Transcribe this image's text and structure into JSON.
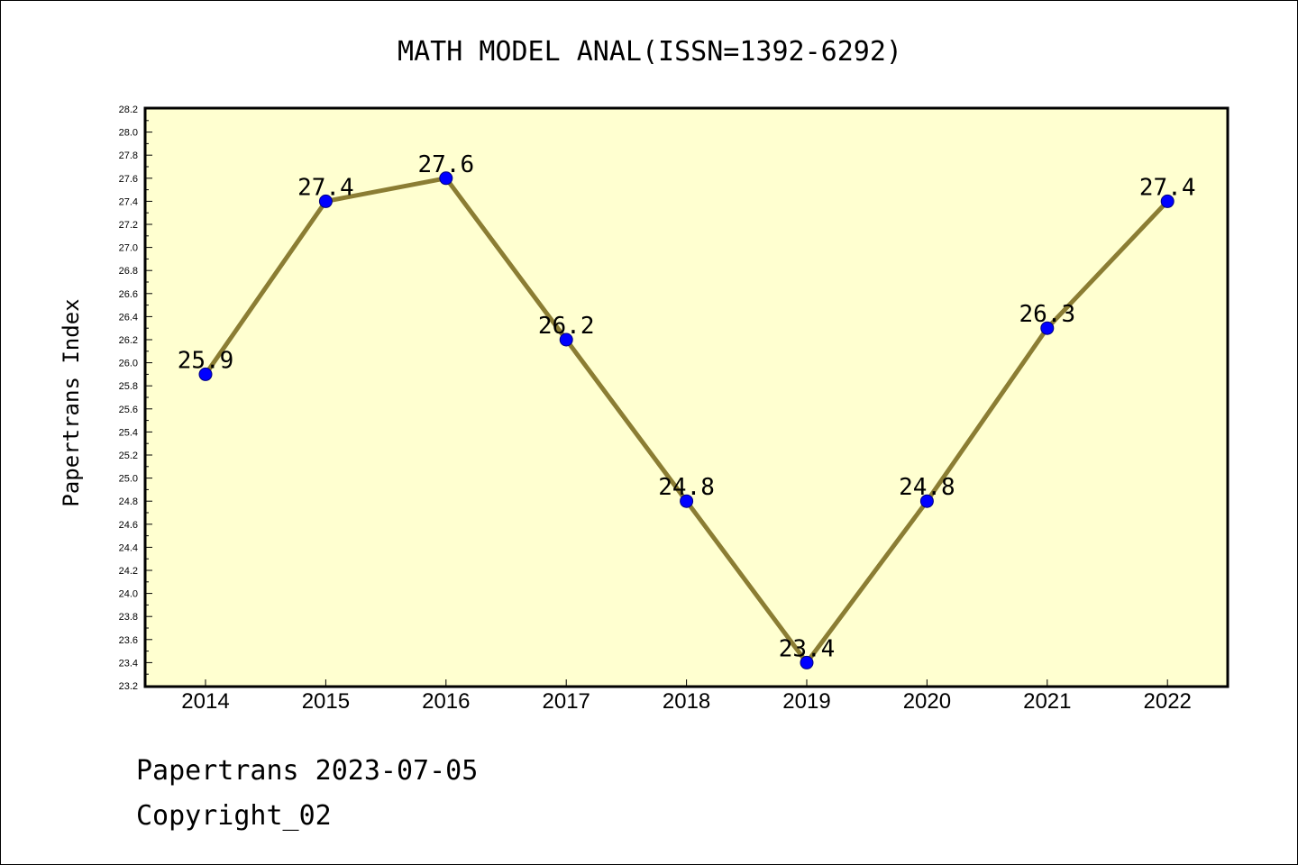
{
  "colors": {
    "plot_background": "#ffffd0",
    "line": "#8b7d33",
    "marker_fill": "#0000ff",
    "marker_stroke": "#000080"
  },
  "footer": {
    "line1": "Papertrans 2023-07-05",
    "line2": "Copyright_02"
  },
  "chart_data": {
    "type": "line",
    "title": "MATH MODEL ANAL(ISSN=1392-6292)",
    "xlabel": "",
    "ylabel": "Papertrans Index",
    "categories": [
      "2014",
      "2015",
      "2016",
      "2017",
      "2018",
      "2019",
      "2020",
      "2021",
      "2022"
    ],
    "series": [
      {
        "values": [
          25.9,
          27.4,
          27.6,
          26.2,
          24.8,
          23.4,
          24.8,
          26.3,
          27.4
        ]
      }
    ],
    "data_labels": [
      "25.9",
      "27.4",
      "27.6",
      "26.2",
      "24.8",
      "23.4",
      "24.8",
      "26.3",
      "27.4"
    ],
    "ylim": [
      23.2,
      28.2
    ],
    "yticks": [
      "23.2",
      "23.4",
      "23.6",
      "23.8",
      "24.0",
      "24.2",
      "24.4",
      "24.6",
      "24.8",
      "25.0",
      "25.2",
      "25.4",
      "25.6",
      "25.8",
      "26.0",
      "26.2",
      "26.4",
      "26.6",
      "26.8",
      "27.0",
      "27.2",
      "27.4",
      "27.6",
      "27.8",
      "28.0",
      "28.2"
    ],
    "grid": false,
    "legend": "none"
  }
}
